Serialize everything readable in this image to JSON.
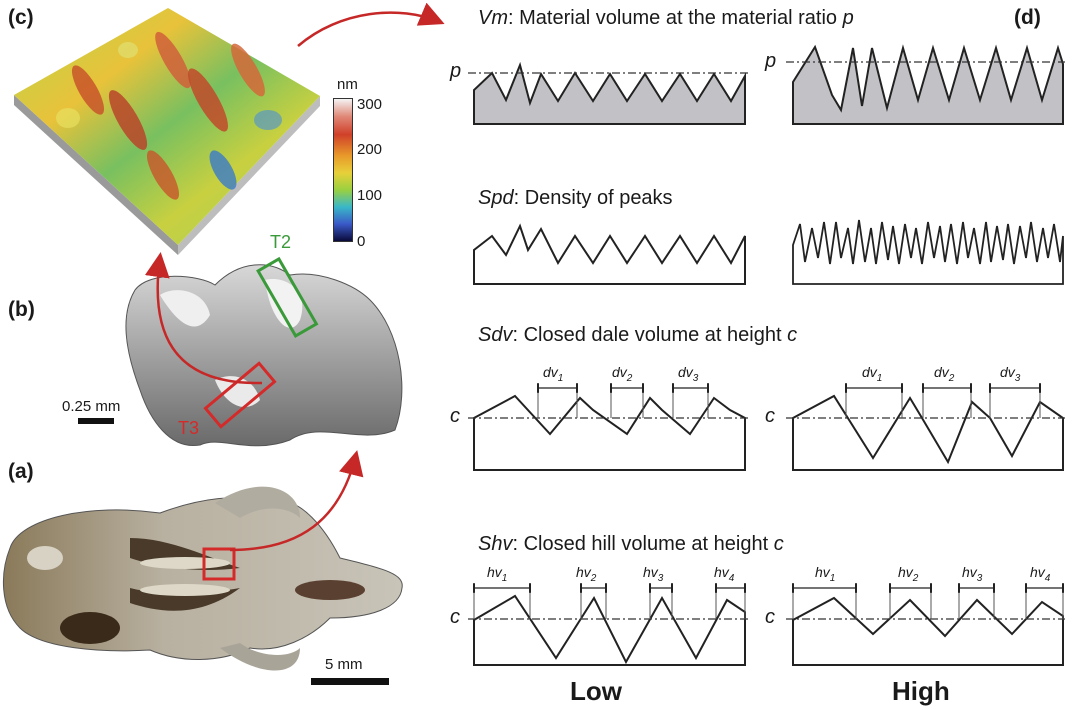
{
  "panels": {
    "c_label": "(c)",
    "b_label": "(b)",
    "a_label": "(a)",
    "d_label": "(d)"
  },
  "colorbar": {
    "unit": "nm",
    "ticks": [
      "300",
      "200",
      "100",
      "0"
    ]
  },
  "tooth": {
    "scale_label": "0.25 mm",
    "region_t2": "T2",
    "region_t3": "T3",
    "colors": {
      "t2": "#3a9a3a",
      "t3": "#d42a2a"
    }
  },
  "skull": {
    "scale_label": "5 mm"
  },
  "params": {
    "vm": {
      "symbol": "Vm",
      "text": ": Material volume at the material ratio ",
      "var": "p",
      "axis_label": "p"
    },
    "spd": {
      "symbol": "Spd",
      "text": ": Density of peaks"
    },
    "sdv": {
      "symbol": "Sdv",
      "text": ": Closed dale volume at height ",
      "var": "c",
      "axis_label": "c"
    },
    "shv": {
      "symbol": "Shv",
      "text": ": Closed hill volume at height ",
      "var": "c",
      "axis_label": "c"
    }
  },
  "dv_labels": [
    "dv",
    "dv",
    "dv"
  ],
  "dv_subs": [
    "1",
    "2",
    "3"
  ],
  "hv_labels": [
    "hv",
    "hv",
    "hv",
    "hv"
  ],
  "hv_subs": [
    "1",
    "2",
    "3",
    "4"
  ],
  "columns": {
    "low": "Low",
    "high": "High"
  },
  "arrow_color": "#c62828"
}
